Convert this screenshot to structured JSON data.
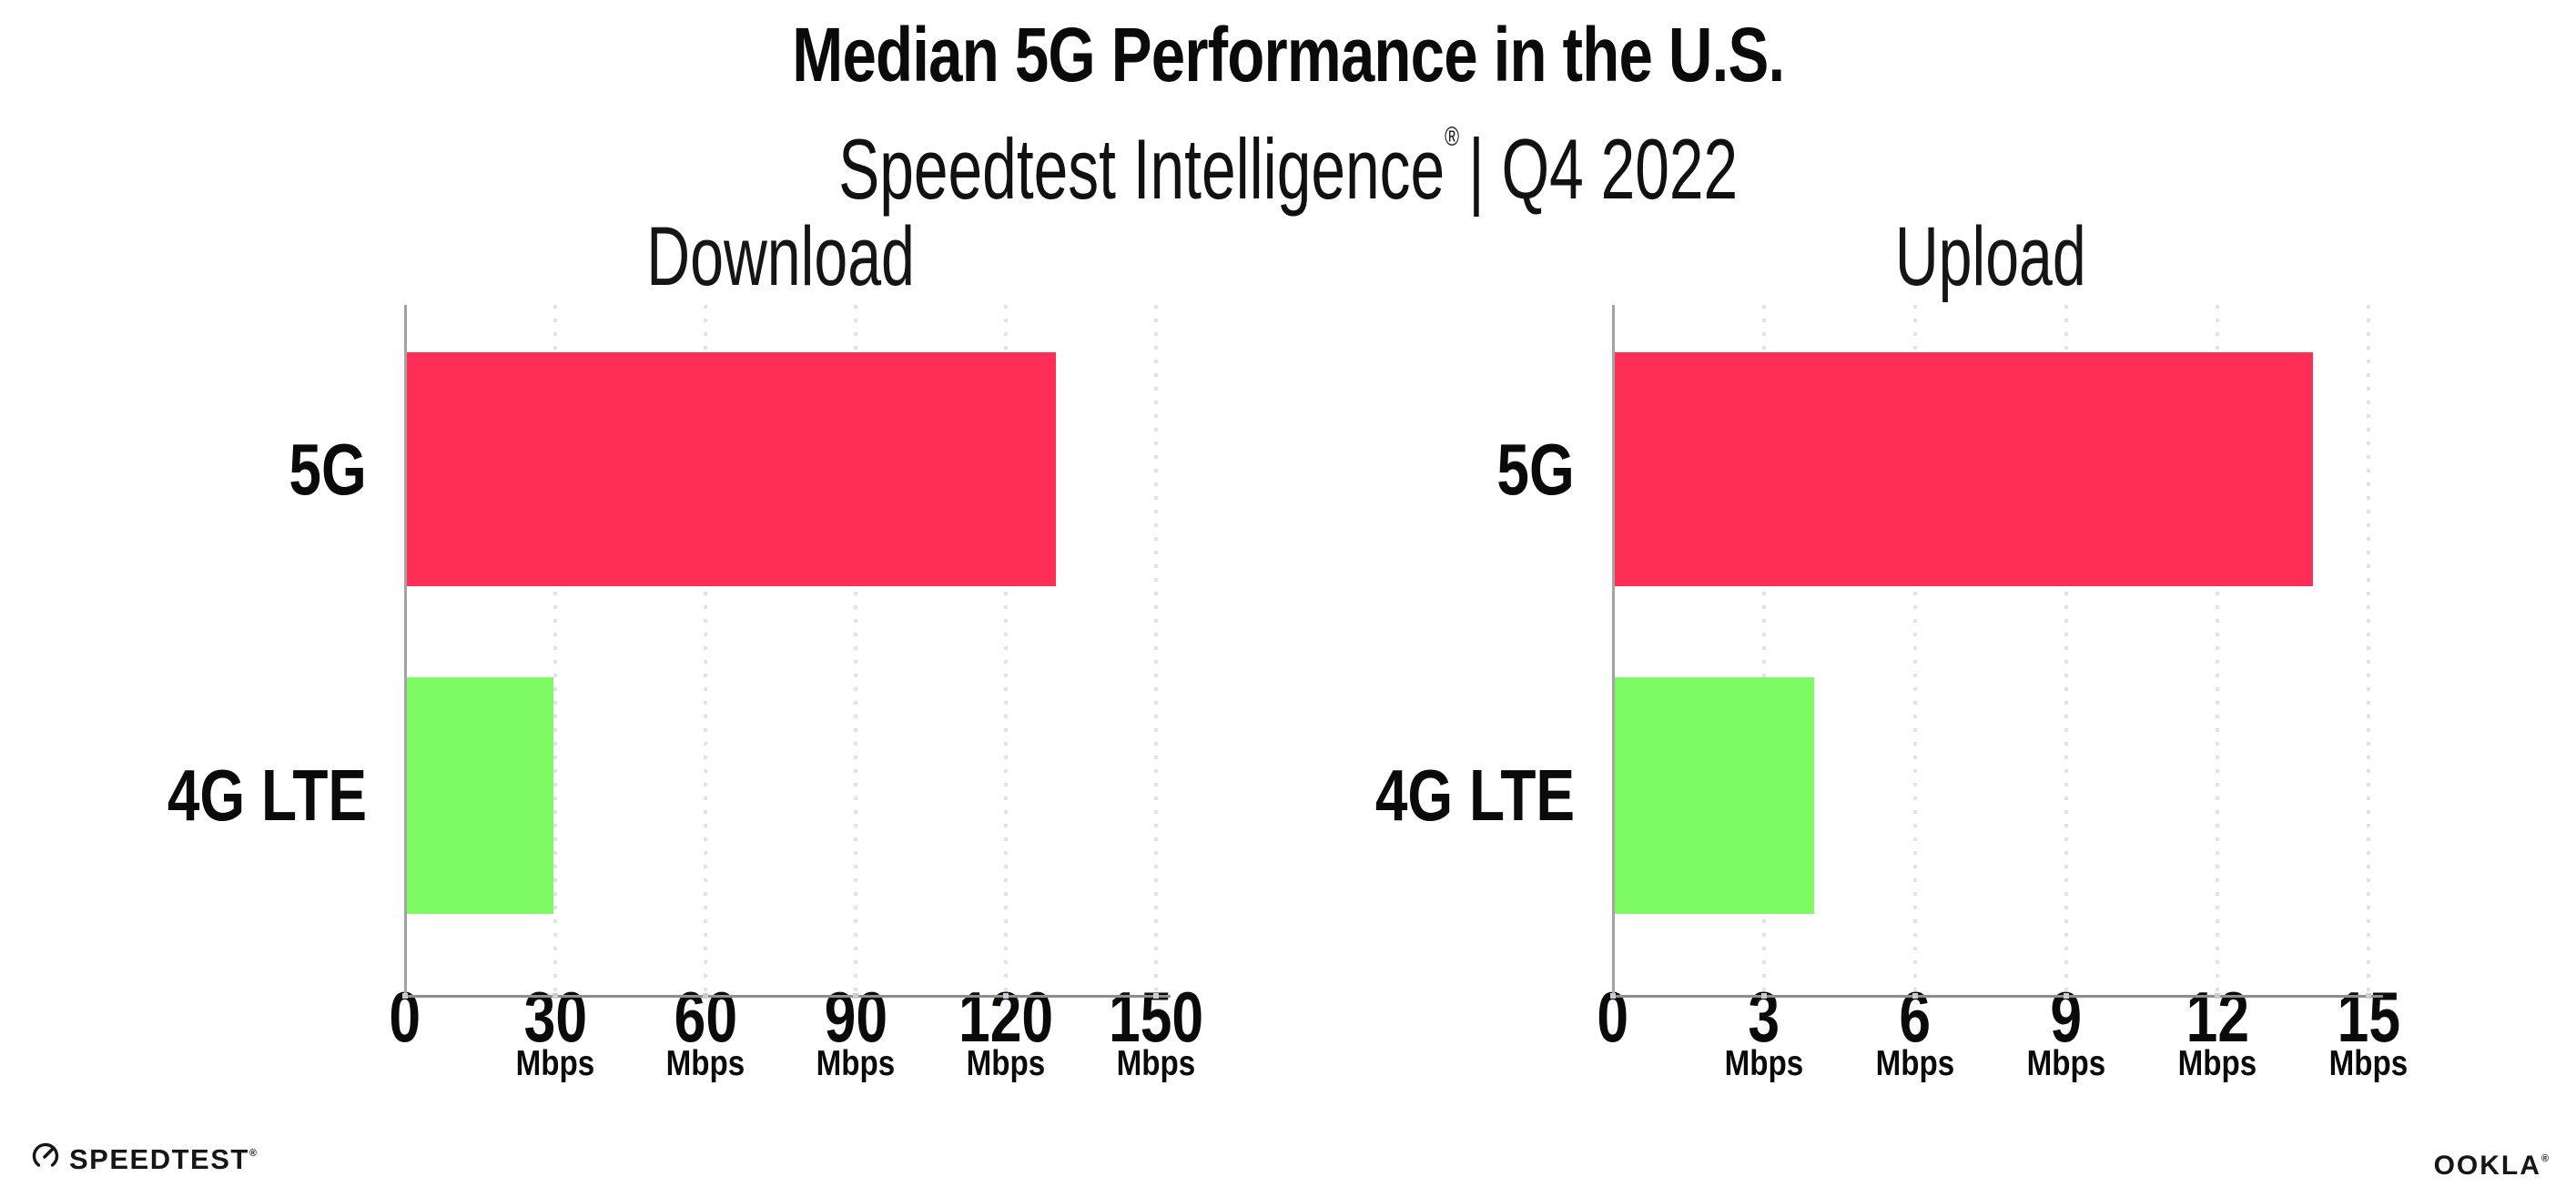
{
  "page": {
    "background": "#FFFFFF"
  },
  "header": {
    "title": "Median 5G Performance in the U.S.",
    "subtitle": {
      "brand": "Speedtest Intelligence",
      "registered_mark": "®",
      "period": "| Q4 2022"
    }
  },
  "colors": {
    "bar_5g": "#FF2E56",
    "bar_4g_lte": "#7DFA64",
    "axis": "#A3A3A3",
    "gridline": "#E0E1EC",
    "text": "#0B0B0B"
  },
  "chart_data": [
    {
      "type": "bar",
      "orientation": "horizontal",
      "title": "Download",
      "categories": [
        "5G",
        "4G LTE"
      ],
      "values": [
        130,
        29.6
      ],
      "unit": "Mbps",
      "bar_colors": [
        "#FF2E56",
        "#7DFA64"
      ],
      "xlim": [
        0,
        150
      ],
      "xticks": [
        0,
        30,
        60,
        90,
        120,
        150
      ],
      "xtick_unit": "Mbps",
      "grid": "dotted-vertical",
      "legend": "none"
    },
    {
      "type": "bar",
      "orientation": "horizontal",
      "title": "Upload",
      "categories": [
        "5G",
        "4G LTE"
      ],
      "values": [
        13.9,
        4
      ],
      "unit": "Mbps",
      "bar_colors": [
        "#FF2E56",
        "#7DFA64"
      ],
      "xlim": [
        0,
        15
      ],
      "xticks": [
        0,
        3,
        6,
        9,
        12,
        15
      ],
      "xtick_unit": "Mbps",
      "grid": "dotted-vertical",
      "legend": "none"
    }
  ],
  "footer": {
    "speedtest_label": "SPEEDTEST",
    "speedtest_mark": "®",
    "ookla_label": "OOKLA",
    "ookla_mark": "®"
  }
}
